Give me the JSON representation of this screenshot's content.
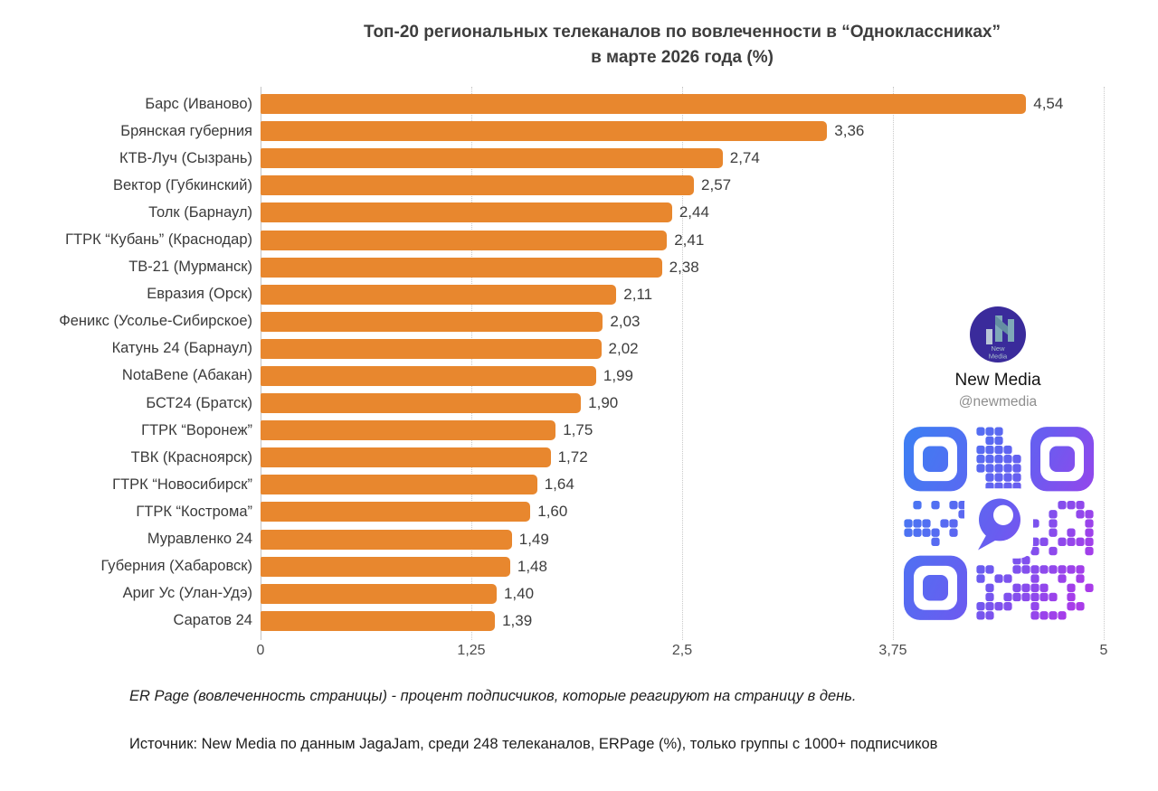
{
  "title": {
    "line1": "Топ-20 региональных телеканалов по вовлеченности в “Одноклассниках”",
    "line2": "в марте 2026 года (%)"
  },
  "chart_data": {
    "type": "bar",
    "orientation": "horizontal",
    "title": "Топ-20 региональных телеканалов по вовлеченности в “Одноклассниках” в марте 2026 года (%)",
    "categories": [
      "Барс (Иваново)",
      "Брянская губерния",
      "КТВ-Луч (Сызрань)",
      "Вектор (Губкинский)",
      "Толк (Барнаул)",
      "ГТРК “Кубань” (Краснодар)",
      "ТВ-21 (Мурманск)",
      "Евразия (Орск)",
      "Феникс (Усолье-Сибирское)",
      "Катунь 24 (Барнаул)",
      "NotaBene (Абакан)",
      "БСТ24 (Братск)",
      "ГТРК “Воронеж”",
      "ТВК (Красноярск)",
      "ГТРК “Новосибирск”",
      "ГТРК “Кострома”",
      "Муравленко 24",
      "Губерния (Хабаровск)",
      "Ариг Ус (Улан-Удэ)",
      "Саратов 24"
    ],
    "values": [
      4.54,
      3.36,
      2.74,
      2.57,
      2.44,
      2.41,
      2.38,
      2.11,
      2.03,
      2.02,
      1.99,
      1.9,
      1.75,
      1.72,
      1.64,
      1.6,
      1.49,
      1.48,
      1.4,
      1.39
    ],
    "value_labels": [
      "4,54",
      "3,36",
      "2,74",
      "2,57",
      "2,44",
      "2,41",
      "2,38",
      "2,11",
      "2,03",
      "2,02",
      "1,99",
      "1,90",
      "1,75",
      "1,72",
      "1,64",
      "1,60",
      "1,49",
      "1,48",
      "1,40",
      "1,39"
    ],
    "xlabel": "",
    "ylabel": "",
    "xlim": [
      0,
      5
    ],
    "x_ticks": [
      {
        "value": 0,
        "label": "0"
      },
      {
        "value": 1.25,
        "label": "1,25"
      },
      {
        "value": 2.5,
        "label": "2,5"
      },
      {
        "value": 3.75,
        "label": "3,75"
      },
      {
        "value": 5,
        "label": "5"
      }
    ],
    "grid": "dotted-vertical",
    "legend": "none",
    "bar_color": "#E8872E"
  },
  "branding": {
    "name": "New Media",
    "handle": "@newmedia",
    "logo_text_line1": "New",
    "logo_text_line2": "Media",
    "logo_bg_color": "#3A2B9B",
    "qr_gradient_start": "#3F7DF3",
    "qr_gradient_end": "#A93BE9"
  },
  "footnotes": {
    "note1": "ER Page (вовлеченность страницы) - процент подписчиков, которые реагируют на страницу в день.",
    "note2": "Источник: New Media по данным JagaJam, среди 248 телеканалов, ERPage (%), только группы с 1000+ подписчиков"
  }
}
